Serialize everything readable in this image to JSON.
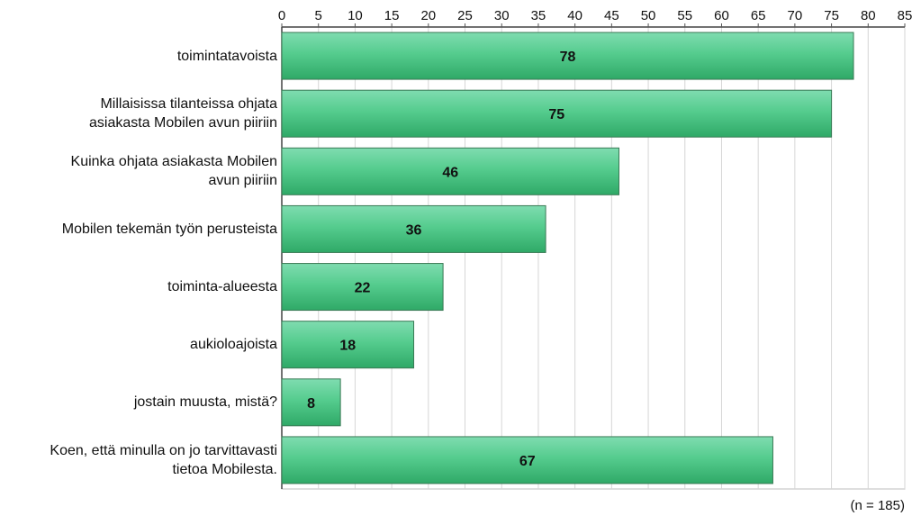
{
  "chart_data": {
    "type": "bar",
    "orientation": "horizontal",
    "categories": [
      "toimintatavoista",
      "Millaisissa tilanteissa ohjata\nasiakasta Mobilen avun piiriin",
      "Kuinka ohjata asiakasta Mobilen\navun piiriin",
      "Mobilen tekemän työn perusteista",
      "toiminta-alueesta",
      "aukioloajoista",
      "jostain muusta, mistä?",
      "Koen, että minulla on jo tarvittavasti\ntietoa Mobilesta."
    ],
    "values": [
      78,
      75,
      46,
      36,
      22,
      18,
      8,
      67
    ],
    "value_labels": [
      "78",
      "75",
      "46",
      "36",
      "22",
      "18",
      "8",
      "67"
    ],
    "xlim": [
      0,
      85
    ],
    "xticks": [
      "0",
      "5",
      "10",
      "15",
      "20",
      "25",
      "30",
      "35",
      "40",
      "45",
      "50",
      "55",
      "60",
      "65",
      "70",
      "75",
      "80",
      "85"
    ],
    "x_axis_position": "top",
    "grid": true,
    "bar_color": "#4fc98a",
    "title": "",
    "xlabel": "",
    "ylabel": ""
  },
  "note": "(n = 185)"
}
